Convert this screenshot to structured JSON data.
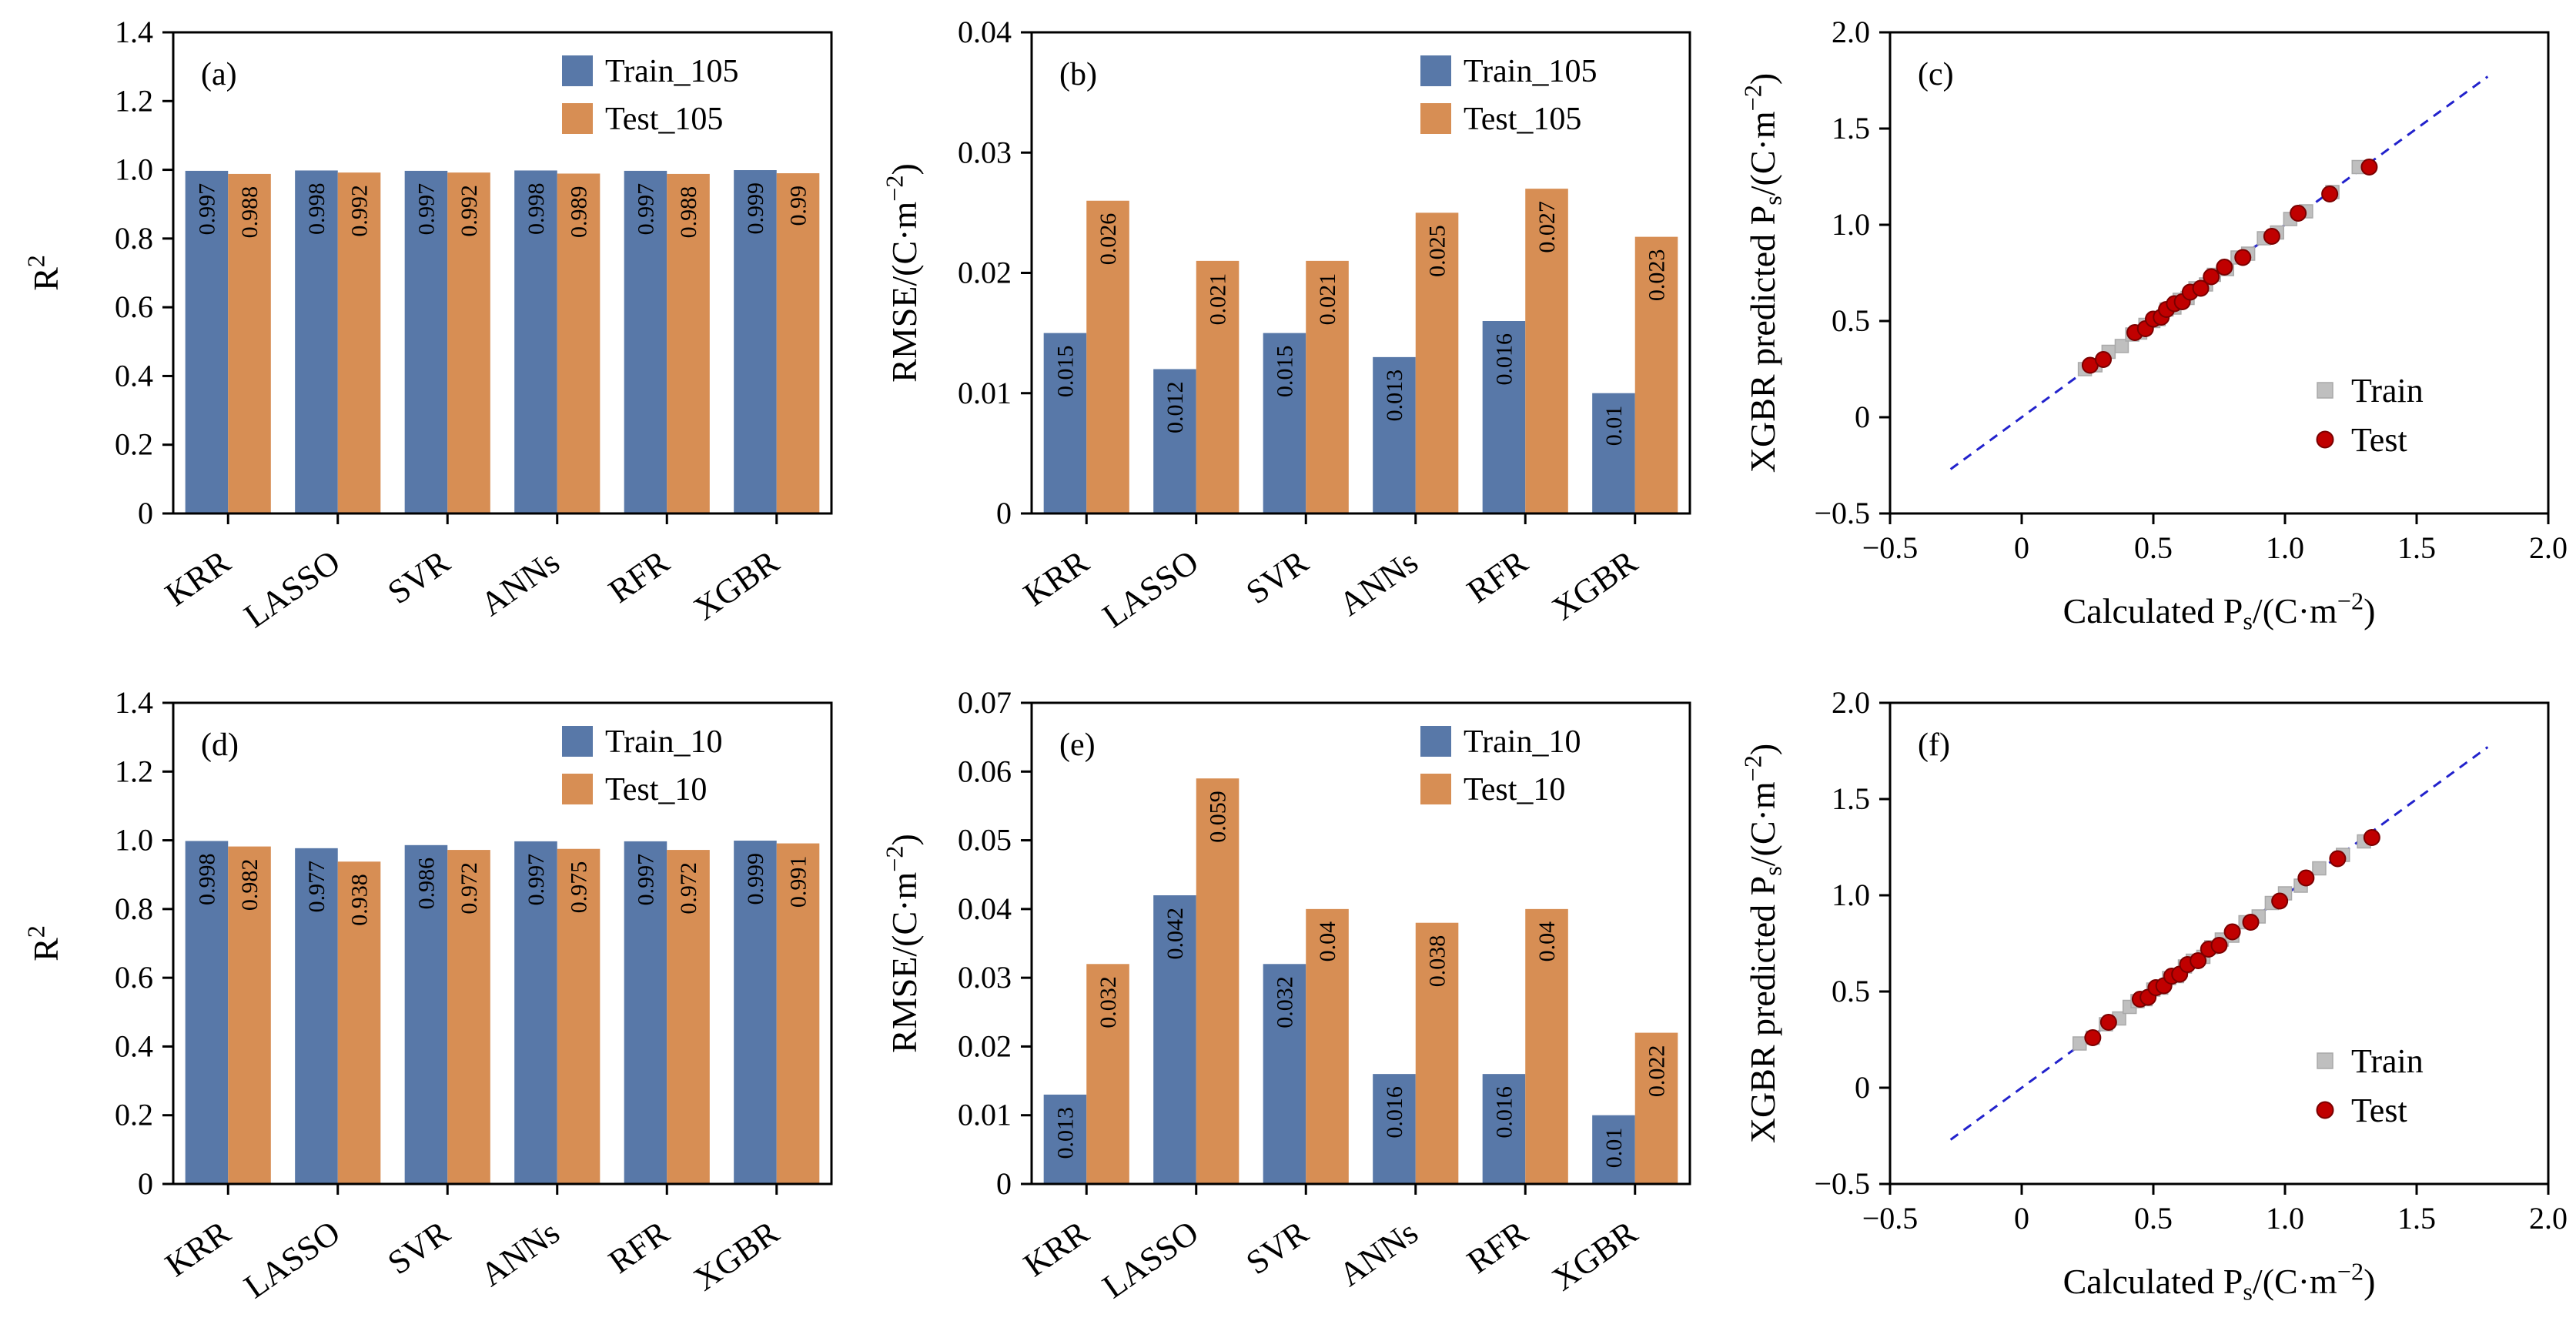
{
  "figure": {
    "background": "#ffffff"
  },
  "colors": {
    "train_bar": "#5878A8",
    "test_bar": "#D78E54",
    "train_marker": "#BFBFBF",
    "test_marker": "#C00000",
    "fit_line": "#2222CC",
    "axis": "#000000"
  },
  "chart_data": [
    {
      "id": "a",
      "type": "bar",
      "panel_label": "(a)",
      "categories": [
        "KRR",
        "LASSO",
        "SVR",
        "ANNs",
        "RFR",
        "XGBR"
      ],
      "ylabel": "R^{2}",
      "ylim": [
        0,
        1.4
      ],
      "ytick_vals": [
        0,
        0.2,
        0.4,
        0.6,
        0.8,
        1.0,
        1.2,
        1.4
      ],
      "ytick_labels": [
        "0",
        "0.2",
        "0.4",
        "0.6",
        "0.8",
        "1.0",
        "1.2",
        "1.4"
      ],
      "series": [
        {
          "name": "Train_105",
          "color": "#5878A8",
          "values": [
            0.997,
            0.998,
            0.997,
            0.998,
            0.997,
            0.999
          ],
          "labels": [
            "0.997",
            "0.998",
            "0.997",
            "0.998",
            "0.997",
            "0.999"
          ]
        },
        {
          "name": "Test_105",
          "color": "#D78E54",
          "values": [
            0.988,
            0.992,
            0.992,
            0.989,
            0.988,
            0.99
          ],
          "labels": [
            "0.988",
            "0.992",
            "0.992",
            "0.989",
            "0.988",
            "0.99"
          ]
        }
      ]
    },
    {
      "id": "b",
      "type": "bar",
      "panel_label": "(b)",
      "categories": [
        "KRR",
        "LASSO",
        "SVR",
        "ANNs",
        "RFR",
        "XGBR"
      ],
      "ylabel": "RMSE/(C·m^{−2})",
      "ylim": [
        0,
        0.04
      ],
      "ytick_vals": [
        0,
        0.01,
        0.02,
        0.03,
        0.04
      ],
      "ytick_labels": [
        "0",
        "0.01",
        "0.02",
        "0.03",
        "0.04"
      ],
      "series": [
        {
          "name": "Train_105",
          "color": "#5878A8",
          "values": [
            0.015,
            0.012,
            0.015,
            0.013,
            0.016,
            0.01
          ],
          "labels": [
            "0.015",
            "0.012",
            "0.015",
            "0.013",
            "0.016",
            "0.01"
          ]
        },
        {
          "name": "Test_105",
          "color": "#D78E54",
          "values": [
            0.026,
            0.021,
            0.021,
            0.025,
            0.027,
            0.023
          ],
          "labels": [
            "0.026",
            "0.021",
            "0.021",
            "0.025",
            "0.027",
            "0.023"
          ]
        }
      ]
    },
    {
      "id": "c",
      "type": "scatter",
      "panel_label": "(c)",
      "xlabel": "Calculated P_{s}/(C·m^{−2})",
      "ylabel": "XGBR predicted P_{s}/(C·m^{−2})",
      "xlim": [
        -0.5,
        2.0
      ],
      "ylim": [
        -0.5,
        2.0
      ],
      "tick_vals": [
        -0.5,
        0,
        0.5,
        1.0,
        1.5,
        2.0
      ],
      "tick_labels": [
        "−0.5",
        "0",
        "0.5",
        "1.0",
        "1.5",
        "2.0"
      ],
      "line": {
        "x1": -0.27,
        "y1": -0.27,
        "x2": 1.77,
        "y2": 1.77,
        "color": "#2222CC"
      },
      "series": [
        {
          "name": "Train",
          "marker": "square",
          "color": "#BFBFBF",
          "edge": "#A9A9A9",
          "points": [
            [
              0.24,
              0.25
            ],
            [
              0.28,
              0.27
            ],
            [
              0.33,
              0.34
            ],
            [
              0.38,
              0.37
            ],
            [
              0.42,
              0.43
            ],
            [
              0.45,
              0.44
            ],
            [
              0.47,
              0.48
            ],
            [
              0.5,
              0.5
            ],
            [
              0.52,
              0.51
            ],
            [
              0.55,
              0.56
            ],
            [
              0.58,
              0.57
            ],
            [
              0.6,
              0.61
            ],
            [
              0.63,
              0.62
            ],
            [
              0.66,
              0.67
            ],
            [
              0.7,
              0.69
            ],
            [
              0.73,
              0.74
            ],
            [
              0.78,
              0.77
            ],
            [
              0.82,
              0.83
            ],
            [
              0.86,
              0.85
            ],
            [
              0.92,
              0.93
            ],
            [
              0.97,
              0.96
            ],
            [
              1.02,
              1.03
            ],
            [
              1.08,
              1.07
            ],
            [
              1.18,
              1.17
            ],
            [
              1.28,
              1.3
            ]
          ]
        },
        {
          "name": "Test",
          "marker": "circle",
          "color": "#C00000",
          "edge": "#7A0000",
          "points": [
            [
              0.26,
              0.27
            ],
            [
              0.31,
              0.3
            ],
            [
              0.43,
              0.44
            ],
            [
              0.47,
              0.46
            ],
            [
              0.5,
              0.51
            ],
            [
              0.53,
              0.52
            ],
            [
              0.55,
              0.56
            ],
            [
              0.58,
              0.59
            ],
            [
              0.61,
              0.6
            ],
            [
              0.64,
              0.65
            ],
            [
              0.68,
              0.67
            ],
            [
              0.72,
              0.73
            ],
            [
              0.77,
              0.78
            ],
            [
              0.84,
              0.83
            ],
            [
              0.95,
              0.94
            ],
            [
              1.05,
              1.06
            ],
            [
              1.17,
              1.16
            ],
            [
              1.32,
              1.3
            ]
          ]
        }
      ]
    },
    {
      "id": "d",
      "type": "bar",
      "panel_label": "(d)",
      "categories": [
        "KRR",
        "LASSO",
        "SVR",
        "ANNs",
        "RFR",
        "XGBR"
      ],
      "ylabel": "R^{2}",
      "ylim": [
        0,
        1.4
      ],
      "ytick_vals": [
        0,
        0.2,
        0.4,
        0.6,
        0.8,
        1.0,
        1.2,
        1.4
      ],
      "ytick_labels": [
        "0",
        "0.2",
        "0.4",
        "0.6",
        "0.8",
        "1.0",
        "1.2",
        "1.4"
      ],
      "series": [
        {
          "name": "Train_10",
          "color": "#5878A8",
          "values": [
            0.998,
            0.977,
            0.986,
            0.997,
            0.997,
            0.999
          ],
          "labels": [
            "0.998",
            "0.977",
            "0.986",
            "0.997",
            "0.997",
            "0.999"
          ]
        },
        {
          "name": "Test_10",
          "color": "#D78E54",
          "values": [
            0.982,
            0.938,
            0.972,
            0.975,
            0.972,
            0.991
          ],
          "labels": [
            "0.982",
            "0.938",
            "0.972",
            "0.975",
            "0.972",
            "0.991"
          ]
        }
      ]
    },
    {
      "id": "e",
      "type": "bar",
      "panel_label": "(e)",
      "categories": [
        "KRR",
        "LASSO",
        "SVR",
        "ANNs",
        "RFR",
        "XGBR"
      ],
      "ylabel": "RMSE/(C·m^{−2})",
      "ylim": [
        0,
        0.07
      ],
      "ytick_vals": [
        0,
        0.01,
        0.02,
        0.03,
        0.04,
        0.05,
        0.06,
        0.07
      ],
      "ytick_labels": [
        "0",
        "0.01",
        "0.02",
        "0.03",
        "0.04",
        "0.05",
        "0.06",
        "0.07"
      ],
      "series": [
        {
          "name": "Train_10",
          "color": "#5878A8",
          "values": [
            0.013,
            0.042,
            0.032,
            0.016,
            0.016,
            0.01
          ],
          "labels": [
            "0.013",
            "0.042",
            "0.032",
            "0.016",
            "0.016",
            "0.01"
          ]
        },
        {
          "name": "Test_10",
          "color": "#D78E54",
          "values": [
            0.032,
            0.059,
            0.04,
            0.038,
            0.04,
            0.022
          ],
          "labels": [
            "0.032",
            "0.059",
            "0.04",
            "0.038",
            "0.04",
            "0.022"
          ]
        }
      ]
    },
    {
      "id": "f",
      "type": "scatter",
      "panel_label": "(f)",
      "xlabel": "Calculated P_{s}/(C·m^{−2})",
      "ylabel": "XGBR predicted P_{s}/(C·m^{−2})",
      "xlim": [
        -0.5,
        2.0
      ],
      "ylim": [
        -0.5,
        2.0
      ],
      "tick_vals": [
        -0.5,
        0,
        0.5,
        1.0,
        1.5,
        2.0
      ],
      "tick_labels": [
        "−0.5",
        "0",
        "0.5",
        "1.0",
        "1.5",
        "2.0"
      ],
      "line": {
        "x1": -0.27,
        "y1": -0.27,
        "x2": 1.77,
        "y2": 1.77,
        "color": "#2222CC"
      },
      "series": [
        {
          "name": "Train",
          "marker": "square",
          "color": "#BFBFBF",
          "edge": "#A9A9A9",
          "points": [
            [
              0.22,
              0.23
            ],
            [
              0.27,
              0.26
            ],
            [
              0.32,
              0.33
            ],
            [
              0.37,
              0.36
            ],
            [
              0.41,
              0.42
            ],
            [
              0.44,
              0.45
            ],
            [
              0.47,
              0.46
            ],
            [
              0.5,
              0.51
            ],
            [
              0.53,
              0.52
            ],
            [
              0.56,
              0.57
            ],
            [
              0.59,
              0.58
            ],
            [
              0.62,
              0.63
            ],
            [
              0.65,
              0.66
            ],
            [
              0.69,
              0.68
            ],
            [
              0.72,
              0.73
            ],
            [
              0.76,
              0.77
            ],
            [
              0.8,
              0.79
            ],
            [
              0.85,
              0.86
            ],
            [
              0.9,
              0.89
            ],
            [
              0.95,
              0.96
            ],
            [
              1.0,
              1.01
            ],
            [
              1.06,
              1.05
            ],
            [
              1.13,
              1.14
            ],
            [
              1.22,
              1.21
            ],
            [
              1.3,
              1.28
            ]
          ]
        },
        {
          "name": "Test",
          "marker": "circle",
          "color": "#C00000",
          "edge": "#7A0000",
          "points": [
            [
              0.27,
              0.26
            ],
            [
              0.33,
              0.34
            ],
            [
              0.45,
              0.46
            ],
            [
              0.48,
              0.47
            ],
            [
              0.51,
              0.52
            ],
            [
              0.54,
              0.53
            ],
            [
              0.57,
              0.58
            ],
            [
              0.6,
              0.59
            ],
            [
              0.63,
              0.64
            ],
            [
              0.67,
              0.66
            ],
            [
              0.71,
              0.72
            ],
            [
              0.75,
              0.74
            ],
            [
              0.8,
              0.81
            ],
            [
              0.87,
              0.86
            ],
            [
              0.98,
              0.97
            ],
            [
              1.08,
              1.09
            ],
            [
              1.2,
              1.19
            ],
            [
              1.33,
              1.3
            ]
          ]
        }
      ]
    }
  ]
}
